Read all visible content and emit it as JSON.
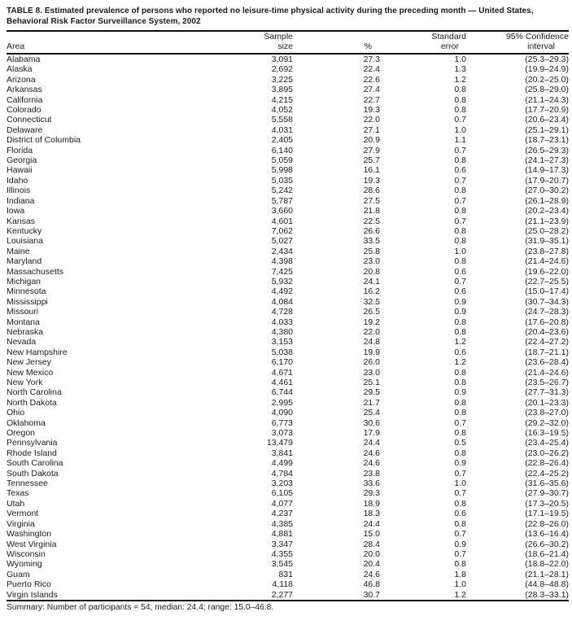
{
  "document": {
    "title": "TABLE 8. Estimated prevalence of persons who reported no leisure-time physical activity during the preceding month — United States, Behavioral Risk Factor Surveillance System, 2002",
    "footer": "Summary: Number of participants = 54; median: 24.4; range: 15.0–46.8."
  },
  "table": {
    "columns": [
      {
        "top": "",
        "bottom": "Area"
      },
      {
        "top": "Sample",
        "bottom": "size"
      },
      {
        "top": "",
        "bottom": "%"
      },
      {
        "top": "Standard",
        "bottom": "error"
      },
      {
        "top": "95% Confidence",
        "bottom": "interval"
      }
    ],
    "rows": [
      {
        "area": "Alabama",
        "sample": "3,091",
        "pct": "27.3",
        "se": "1.0",
        "ci": "(25.3–29.3)"
      },
      {
        "area": "Alaska",
        "sample": "2,692",
        "pct": "22.4",
        "se": "1.3",
        "ci": "(19.9–24.9)"
      },
      {
        "area": "Arizona",
        "sample": "3,225",
        "pct": "22.6",
        "se": "1.2",
        "ci": "(20.2–25.0)"
      },
      {
        "area": "Arkansas",
        "sample": "3,895",
        "pct": "27.4",
        "se": "0.8",
        "ci": "(25.8–29.0)"
      },
      {
        "area": "California",
        "sample": "4,215",
        "pct": "22.7",
        "se": "0.8",
        "ci": "(21.1–24.3)"
      },
      {
        "area": "Colorado",
        "sample": "4,052",
        "pct": "19.3",
        "se": "0.8",
        "ci": "(17.7–20.9)"
      },
      {
        "area": "Connecticut",
        "sample": "5,558",
        "pct": "22.0",
        "se": "0.7",
        "ci": "(20.6–23.4)"
      },
      {
        "area": "Delaware",
        "sample": "4,031",
        "pct": "27.1",
        "se": "1.0",
        "ci": "(25.1–29.1)"
      },
      {
        "area": "District of Columbia",
        "sample": "2,405",
        "pct": "20.9",
        "se": "1.1",
        "ci": "(18.7–23.1)"
      },
      {
        "area": "Florida",
        "sample": "6,140",
        "pct": "27.9",
        "se": "0.7",
        "ci": "(26.5–29.3)"
      },
      {
        "area": "Georgia",
        "sample": "5,059",
        "pct": "25.7",
        "se": "0.8",
        "ci": "(24.1–27.3)"
      },
      {
        "area": "Hawaii",
        "sample": "5,998",
        "pct": "16.1",
        "se": "0.6",
        "ci": "(14.9–17.3)"
      },
      {
        "area": "Idaho",
        "sample": "5,035",
        "pct": "19.3",
        "se": "0.7",
        "ci": "(17.9–20.7)"
      },
      {
        "area": "Illinois",
        "sample": "5,242",
        "pct": "28.6",
        "se": "0.8",
        "ci": "(27.0–30.2)"
      },
      {
        "area": "Indiana",
        "sample": "5,787",
        "pct": "27.5",
        "se": "0.7",
        "ci": "(26.1–28.9)"
      },
      {
        "area": "Iowa",
        "sample": "3,660",
        "pct": "21.8",
        "se": "0.8",
        "ci": "(20.2–23.4)"
      },
      {
        "area": "Kansas",
        "sample": "4,601",
        "pct": "22.5",
        "se": "0.7",
        "ci": "(21.1–23.9)"
      },
      {
        "area": "Kentucky",
        "sample": "7,062",
        "pct": "26.6",
        "se": "0.8",
        "ci": "(25.0–28.2)"
      },
      {
        "area": "Louisiana",
        "sample": "5,027",
        "pct": "33.5",
        "se": "0.8",
        "ci": "(31.9–35.1)"
      },
      {
        "area": "Maine",
        "sample": "2,434",
        "pct": "25.8",
        "se": "1.0",
        "ci": "(23.8–27.8)"
      },
      {
        "area": "Maryland",
        "sample": "4,398",
        "pct": "23.0",
        "se": "0.8",
        "ci": "(21.4–24.6)"
      },
      {
        "area": "Massachusetts",
        "sample": "7,425",
        "pct": "20.8",
        "se": "0.6",
        "ci": "(19.6–22.0)"
      },
      {
        "area": "Michigan",
        "sample": "5,932",
        "pct": "24.1",
        "se": "0.7",
        "ci": "(22.7–25.5)"
      },
      {
        "area": "Minnesota",
        "sample": "4,492",
        "pct": "16.2",
        "se": "0.6",
        "ci": "(15.0–17.4)"
      },
      {
        "area": "Mississippi",
        "sample": "4,084",
        "pct": "32.5",
        "se": "0.9",
        "ci": "(30.7–34.3)"
      },
      {
        "area": "Missouri",
        "sample": "4,728",
        "pct": "26.5",
        "se": "0.9",
        "ci": "(24.7–28.3)"
      },
      {
        "area": "Montana",
        "sample": "4,033",
        "pct": "19.2",
        "se": "0.8",
        "ci": "(17.6–20.8)"
      },
      {
        "area": "Nebraska",
        "sample": "4,380",
        "pct": "22.0",
        "se": "0.8",
        "ci": "(20.4–23.6)"
      },
      {
        "area": "Nevada",
        "sample": "3,153",
        "pct": "24.8",
        "se": "1.2",
        "ci": "(22.4–27.2)"
      },
      {
        "area": "New Hampshire",
        "sample": "5,038",
        "pct": "19.9",
        "se": "0.6",
        "ci": "(18.7–21.1)"
      },
      {
        "area": "New Jersey",
        "sample": "6,170",
        "pct": "26.0",
        "se": "1.2",
        "ci": "(23.6–28.4)"
      },
      {
        "area": "New Mexico",
        "sample": "4,671",
        "pct": "23.0",
        "se": "0.8",
        "ci": "(21.4–24.6)"
      },
      {
        "area": "New York",
        "sample": "4,461",
        "pct": "25.1",
        "se": "0.8",
        "ci": "(23.5–26.7)"
      },
      {
        "area": "North Carolina",
        "sample": "6,744",
        "pct": "29.5",
        "se": "0.9",
        "ci": "(27.7–31.3)"
      },
      {
        "area": "North Dakota",
        "sample": "2,995",
        "pct": "21.7",
        "se": "0.8",
        "ci": "(20.1–23.3)"
      },
      {
        "area": "Ohio",
        "sample": "4,090",
        "pct": "25.4",
        "se": "0.8",
        "ci": "(23.8–27.0)"
      },
      {
        "area": "Oklahoma",
        "sample": "6,773",
        "pct": "30.6",
        "se": "0.7",
        "ci": "(29.2–32.0)"
      },
      {
        "area": "Oregon",
        "sample": "3,073",
        "pct": "17.9",
        "se": "0.8",
        "ci": "(16.3–19.5)"
      },
      {
        "area": "Pennsylvania",
        "sample": "13,479",
        "pct": "24.4",
        "se": "0.5",
        "ci": "(23.4–25.4)"
      },
      {
        "area": "Rhode Island",
        "sample": "3,841",
        "pct": "24.6",
        "se": "0.8",
        "ci": "(23.0–26.2)"
      },
      {
        "area": "South Carolina",
        "sample": "4,499",
        "pct": "24.6",
        "se": "0.9",
        "ci": "(22.8–26.4)"
      },
      {
        "area": "South Dakota",
        "sample": "4,784",
        "pct": "23.8",
        "se": "0.7",
        "ci": "(22.4–25.2)"
      },
      {
        "area": "Tennessee",
        "sample": "3,203",
        "pct": "33.6",
        "se": "1.0",
        "ci": "(31.6–35.6)"
      },
      {
        "area": "Texas",
        "sample": "6,105",
        "pct": "29.3",
        "se": "0.7",
        "ci": "(27.9–30.7)"
      },
      {
        "area": "Utah",
        "sample": "4,077",
        "pct": "18.9",
        "se": "0.8",
        "ci": "(17.3–20.5)"
      },
      {
        "area": "Vermont",
        "sample": "4,237",
        "pct": "18.3",
        "se": "0.6",
        "ci": "(17.1–19.5)"
      },
      {
        "area": "Virginia",
        "sample": "4,385",
        "pct": "24.4",
        "se": "0.8",
        "ci": "(22.8–26.0)"
      },
      {
        "area": "Washington",
        "sample": "4,881",
        "pct": "15.0",
        "se": "0.7",
        "ci": "(13.6–16.4)"
      },
      {
        "area": "West Virginia",
        "sample": "3,347",
        "pct": "28.4",
        "se": "0.9",
        "ci": "(26.6–30.2)"
      },
      {
        "area": "Wisconsin",
        "sample": "4,355",
        "pct": "20.0",
        "se": "0.7",
        "ci": "(18.6–21.4)"
      },
      {
        "area": "Wyoming",
        "sample": "3,545",
        "pct": "20.4",
        "se": "0.8",
        "ci": "(18.8–22.0)"
      },
      {
        "area": "Guam",
        "sample": "831",
        "pct": "24.6",
        "se": "1.8",
        "ci": "(21.1–28.1)"
      },
      {
        "area": "Puerto Rico",
        "sample": "4,118",
        "pct": "46.8",
        "se": "1.0",
        "ci": "(44.8–48.8)"
      },
      {
        "area": "Virgin Islands",
        "sample": "2,277",
        "pct": "30.7",
        "se": "1.2",
        "ci": "(28.3–33.1)"
      }
    ]
  }
}
